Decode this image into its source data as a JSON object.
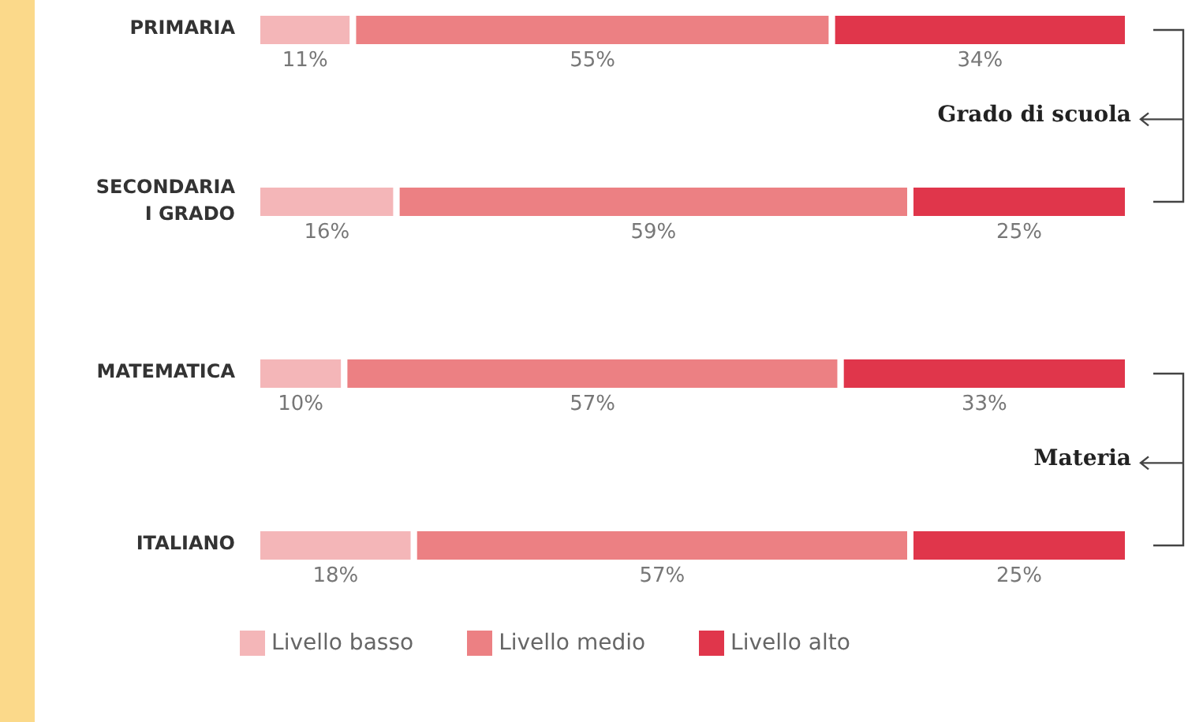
{
  "chart_data": {
    "type": "bar",
    "orientation": "horizontal",
    "stacked": true,
    "legend": "bottom",
    "categories": [
      "PRIMARIA",
      "SECONDARIA I GRADO",
      "MATEMATICA",
      "ITALIANO"
    ],
    "series": [
      {
        "name": "Livello basso",
        "color": "#f4b6b8",
        "values": [
          11,
          16,
          10,
          18
        ],
        "value_labels": [
          "11%",
          "16%",
          "10%",
          "18%"
        ]
      },
      {
        "name": "Livello medio",
        "color": "#ec8083",
        "values": [
          55,
          59,
          57,
          57
        ],
        "value_labels": [
          "55%",
          "59%",
          "57%",
          "57%"
        ]
      },
      {
        "name": "Livello alto",
        "color": "#e0364b",
        "values": [
          34,
          25,
          33,
          25
        ],
        "value_labels": [
          "34%",
          "25%",
          "33%",
          "25%"
        ]
      }
    ],
    "annotations": [
      "Grado di scuola",
      "Materia"
    ]
  }
}
